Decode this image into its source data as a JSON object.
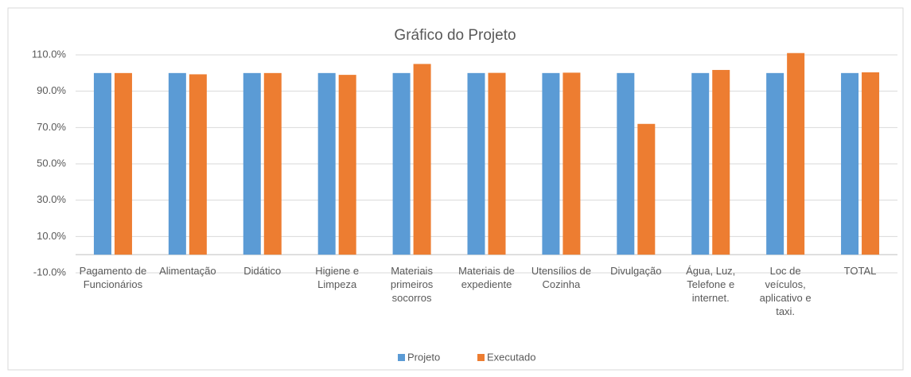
{
  "chart_data": {
    "type": "bar",
    "title": "Gráfico do Projeto",
    "categories": [
      "Pagamento de Funcionários",
      "Alimentação",
      "Didático",
      "Higiene e Limpeza",
      "Materiais primeiros socorros",
      "Materiais de expediente",
      "Utensílios de Cozinha",
      "Divulgação",
      "Água, Luz, Telefone e internet.",
      "Loc de veículos, aplicativo e taxi.",
      "TOTAL"
    ],
    "series": [
      {
        "name": "Projeto",
        "color": "#5b9bd5",
        "values": [
          100,
          100,
          100,
          100,
          100,
          100,
          100,
          100,
          100,
          100,
          100
        ]
      },
      {
        "name": "Executado",
        "color": "#ed7d31",
        "values": [
          100,
          99.3,
          100,
          99,
          105,
          100.1,
          100.2,
          72,
          101.7,
          111,
          100.4
        ]
      }
    ],
    "ylim": [
      -10,
      110
    ],
    "yticks": [
      {
        "value": -10,
        "label": "-10.0%"
      },
      {
        "value": 10,
        "label": "10.0%"
      },
      {
        "value": 30,
        "label": "30.0%"
      },
      {
        "value": 50,
        "label": "50.0%"
      },
      {
        "value": 70,
        "label": "70.0%"
      },
      {
        "value": 90,
        "label": "90.0%"
      },
      {
        "value": 110,
        "label": "110.0%"
      }
    ],
    "grid": true,
    "legend": "bottom"
  }
}
